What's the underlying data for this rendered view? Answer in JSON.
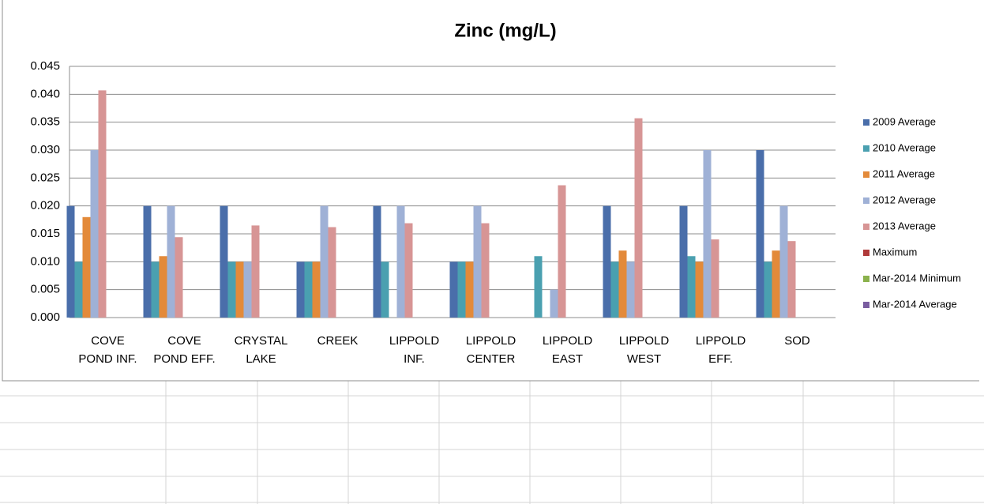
{
  "chart_data": {
    "type": "bar",
    "title": "Zinc (mg/L)",
    "categories": [
      "COVE\nPOND INF.",
      "COVE\nPOND EFF.",
      "CRYSTAL\nLAKE",
      "CREEK",
      "LIPPOLD\nINF.",
      "LIPPOLD\nCENTER",
      "LIPPOLD\nEAST",
      "LIPPOLD\nWEST",
      "LIPPOLD\nEFF.",
      "SOD"
    ],
    "series": [
      {
        "name": "2009 Average",
        "color": "#4a6eaa",
        "values": [
          0.02,
          0.02,
          0.02,
          0.01,
          0.02,
          0.01,
          null,
          0.02,
          0.02,
          0.03
        ]
      },
      {
        "name": "2010 Average",
        "color": "#4aa0b0",
        "values": [
          0.01,
          0.01,
          0.01,
          0.01,
          0.01,
          0.01,
          0.011,
          0.01,
          0.011,
          0.01
        ]
      },
      {
        "name": "2011 Average",
        "color": "#e38a3a",
        "values": [
          0.018,
          0.011,
          0.01,
          0.01,
          null,
          0.01,
          null,
          0.012,
          0.01,
          0.012
        ]
      },
      {
        "name": "2012 Average",
        "color": "#9fb1d6",
        "values": [
          0.03,
          0.02,
          0.01,
          0.02,
          0.02,
          0.02,
          0.005,
          0.01,
          0.03,
          0.02
        ]
      },
      {
        "name": "2013 Average",
        "color": "#d79595",
        "values": [
          0.0407,
          0.0144,
          0.0165,
          0.0162,
          0.0169,
          0.0169,
          0.0237,
          0.0357,
          0.014,
          0.0137
        ]
      },
      {
        "name": "Maximum",
        "color": "#b03a3a",
        "values": [
          null,
          null,
          null,
          null,
          null,
          null,
          null,
          null,
          null,
          null
        ]
      },
      {
        "name": "Mar-2014 Minimum",
        "color": "#8bb24d",
        "values": [
          null,
          null,
          null,
          null,
          null,
          null,
          null,
          null,
          null,
          null
        ]
      },
      {
        "name": "Mar-2014 Average",
        "color": "#7a5da0",
        "values": [
          null,
          null,
          null,
          null,
          null,
          null,
          null,
          null,
          null,
          null
        ]
      }
    ],
    "ylim": [
      0,
      0.045
    ],
    "yticks": [
      {
        "value": 0,
        "label": "0.000"
      },
      {
        "value": 0.005,
        "label": "0.005"
      },
      {
        "value": 0.01,
        "label": "0.010"
      },
      {
        "value": 0.015,
        "label": "0.015"
      },
      {
        "value": 0.02,
        "label": "0.020"
      },
      {
        "value": 0.025,
        "label": "0.025"
      },
      {
        "value": 0.03,
        "label": "0.030"
      },
      {
        "value": 0.035,
        "label": "0.035"
      },
      {
        "value": 0.04,
        "label": "0.040"
      },
      {
        "value": 0.045,
        "label": "0.045"
      }
    ],
    "grid": true,
    "legend": "right"
  }
}
